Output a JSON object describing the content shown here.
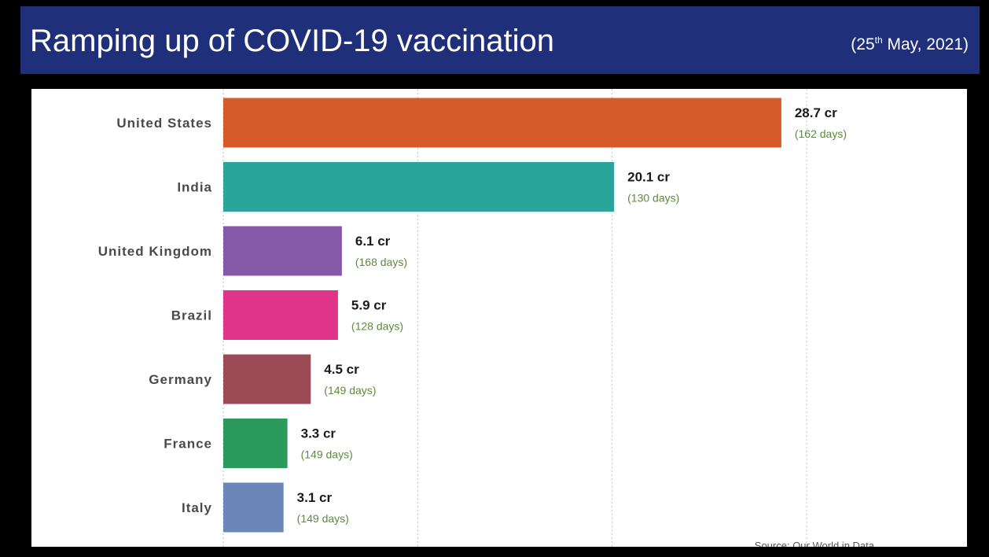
{
  "header": {
    "title": "Ramping up of COVID-19 vaccination",
    "date_prefix": "(25",
    "date_sup": "th",
    "date_suffix": " May, 2021)"
  },
  "source": "Source: Our World in Data",
  "colors": {
    "title_bar": "#1f2f7a",
    "days_text": "#5c8a3c"
  },
  "chart_data": {
    "type": "bar",
    "orientation": "horizontal",
    "title": "Ramping up of COVID-19 vaccination",
    "unit": "cr",
    "categories": [
      "United States",
      "India",
      "United Kingdom",
      "Brazil",
      "Germany",
      "France",
      "Italy"
    ],
    "values": [
      28.7,
      20.1,
      6.1,
      5.9,
      4.5,
      3.3,
      3.1
    ],
    "value_labels": [
      "28.7 cr",
      "20.1 cr",
      "6.1 cr",
      "5.9 cr",
      "4.5 cr",
      "3.3 cr",
      "3.1 cr"
    ],
    "day_labels": [
      "(162 days)",
      "(130 days)",
      "(168 days)",
      "(128 days)",
      "(149 days)",
      "(149 days)",
      "(149 days)"
    ],
    "bar_colors": [
      "#d45a28",
      "#2aa59a",
      "#8558a8",
      "#e0348a",
      "#9c4a55",
      "#2c9a5c",
      "#6b86b8"
    ],
    "xlim": [
      0,
      30
    ],
    "gridlines": [
      10,
      20,
      30
    ],
    "grid": true,
    "legend": "none"
  }
}
